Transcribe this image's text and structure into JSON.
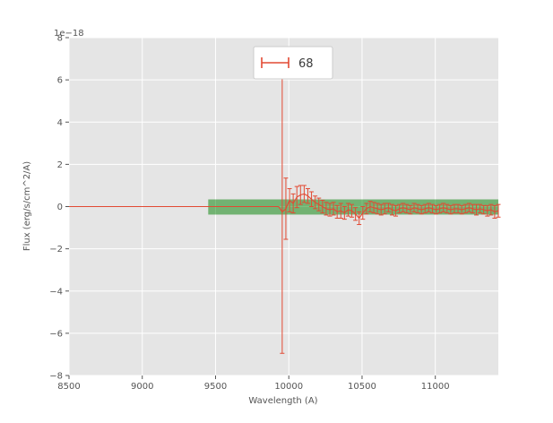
{
  "figure": {
    "window_title": "",
    "description": "Matplotlib-style spectrum plot with red errorbar series and green confidence band"
  },
  "colors": {
    "figure_background": "#ffffff",
    "plot_background": "#e5e5e5",
    "grid": "#ffffff",
    "tick": "#555555",
    "text": "#555555",
    "series": "#e24a33",
    "band": "#008000"
  },
  "chart_data": {
    "type": "line",
    "style": "errorbar",
    "title": "",
    "offset_text": "1e−18",
    "xlabel": "Wavelength (A)",
    "ylabel": "Flux (erg/s/cm^2/A)",
    "xlim": [
      8500,
      11430
    ],
    "ylim": [
      -8,
      8
    ],
    "grid": true,
    "xticks": [
      8500,
      9000,
      9500,
      10000,
      10500,
      11000
    ],
    "xtick_labels": [
      "8500",
      "9000",
      "9500",
      "10000",
      "10500",
      "11000"
    ],
    "yticks": [
      -8,
      -6,
      -4,
      -2,
      0,
      2,
      4,
      6,
      8
    ],
    "ytick_labels": [
      "−8",
      "−6",
      "−4",
      "−2",
      "0",
      "2",
      "4",
      "6",
      "8"
    ],
    "legend": {
      "position": "upper center",
      "label": "68",
      "marker": "errorbar"
    },
    "units_note": "flux values in units of 1e-18 erg/s/cm^2/A",
    "band": {
      "color": "#008000",
      "opacity": 0.5,
      "x": [
        9450,
        11430
      ],
      "y": [
        -0.38,
        0.34
      ]
    },
    "series": [
      {
        "name": "68",
        "color": "#e24a33",
        "x": [
          8500,
          9930,
          9955,
          9980,
          10005,
          10030,
          10055,
          10080,
          10105,
          10130,
          10155,
          10180,
          10205,
          10230,
          10255,
          10280,
          10305,
          10330,
          10355,
          10380,
          10405,
          10430,
          10455,
          10480,
          10505,
          10530,
          10555,
          10580,
          10605,
          10630,
          10655,
          10680,
          10705,
          10730,
          10755,
          10780,
          10805,
          10830,
          10855,
          10880,
          10905,
          10930,
          10955,
          10980,
          11005,
          11030,
          11055,
          11080,
          11105,
          11130,
          11155,
          11180,
          11205,
          11230,
          11255,
          11280,
          11305,
          11330,
          11355,
          11380,
          11405,
          11430
        ],
        "y": [
          0,
          0,
          -0.25,
          -0.1,
          0.3,
          0.15,
          0.45,
          0.55,
          0.6,
          0.5,
          0.35,
          0.2,
          0.1,
          0.0,
          -0.1,
          -0.15,
          -0.1,
          -0.25,
          -0.2,
          -0.3,
          -0.15,
          -0.2,
          -0.35,
          -0.55,
          -0.3,
          -0.1,
          0.0,
          -0.05,
          -0.1,
          -0.15,
          -0.1,
          -0.05,
          -0.15,
          -0.2,
          -0.1,
          -0.05,
          -0.1,
          -0.15,
          -0.05,
          -0.1,
          -0.15,
          -0.1,
          -0.05,
          -0.1,
          -0.15,
          -0.1,
          -0.05,
          -0.1,
          -0.15,
          -0.1,
          -0.1,
          -0.15,
          -0.1,
          -0.05,
          -0.1,
          -0.15,
          -0.1,
          -0.15,
          -0.2,
          -0.15,
          -0.25,
          -0.2
        ],
        "yerr": [
          0,
          0,
          6.7,
          1.45,
          0.55,
          0.45,
          0.5,
          0.45,
          0.4,
          0.35,
          0.35,
          0.3,
          0.3,
          0.3,
          0.3,
          0.3,
          0.3,
          0.3,
          0.35,
          0.3,
          0.3,
          0.3,
          0.3,
          0.3,
          0.3,
          0.25,
          0.25,
          0.25,
          0.25,
          0.25,
          0.25,
          0.2,
          0.25,
          0.25,
          0.2,
          0.2,
          0.2,
          0.2,
          0.2,
          0.2,
          0.2,
          0.2,
          0.2,
          0.2,
          0.2,
          0.2,
          0.2,
          0.2,
          0.2,
          0.2,
          0.2,
          0.2,
          0.2,
          0.2,
          0.2,
          0.25,
          0.2,
          0.2,
          0.25,
          0.25,
          0.3,
          0.3
        ]
      }
    ]
  }
}
